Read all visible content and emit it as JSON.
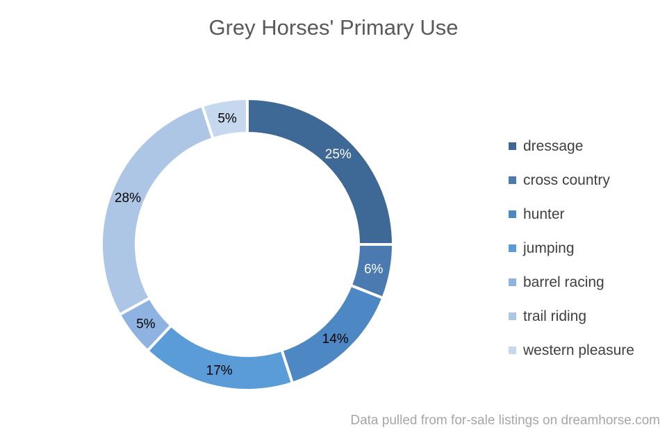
{
  "title": "Grey Horses' Primary Use",
  "source_note": "Data pulled from for-sale listings on dreamhorse.com",
  "chart_data": {
    "type": "pie",
    "variant": "donut",
    "title": "Grey Horses' Primary Use",
    "legend_position": "right",
    "categories": [
      "dressage",
      "cross country",
      "hunter",
      "jumping",
      "barrel racing",
      "trail riding",
      "western pleasure"
    ],
    "values": [
      25,
      6,
      14,
      17,
      5,
      28,
      5
    ],
    "labels": [
      "25%",
      "6%",
      "14%",
      "17%",
      "5%",
      "28%",
      "5%"
    ],
    "colors": [
      "#3e6895",
      "#4a7ab0",
      "#4d87c4",
      "#5a9cd8",
      "#8fb3e0",
      "#aec6e5",
      "#c6d8ee"
    ],
    "label_colors": [
      "#ffffff",
      "#ffffff",
      "#000000",
      "#000000",
      "#000000",
      "#000000",
      "#000000"
    ]
  }
}
